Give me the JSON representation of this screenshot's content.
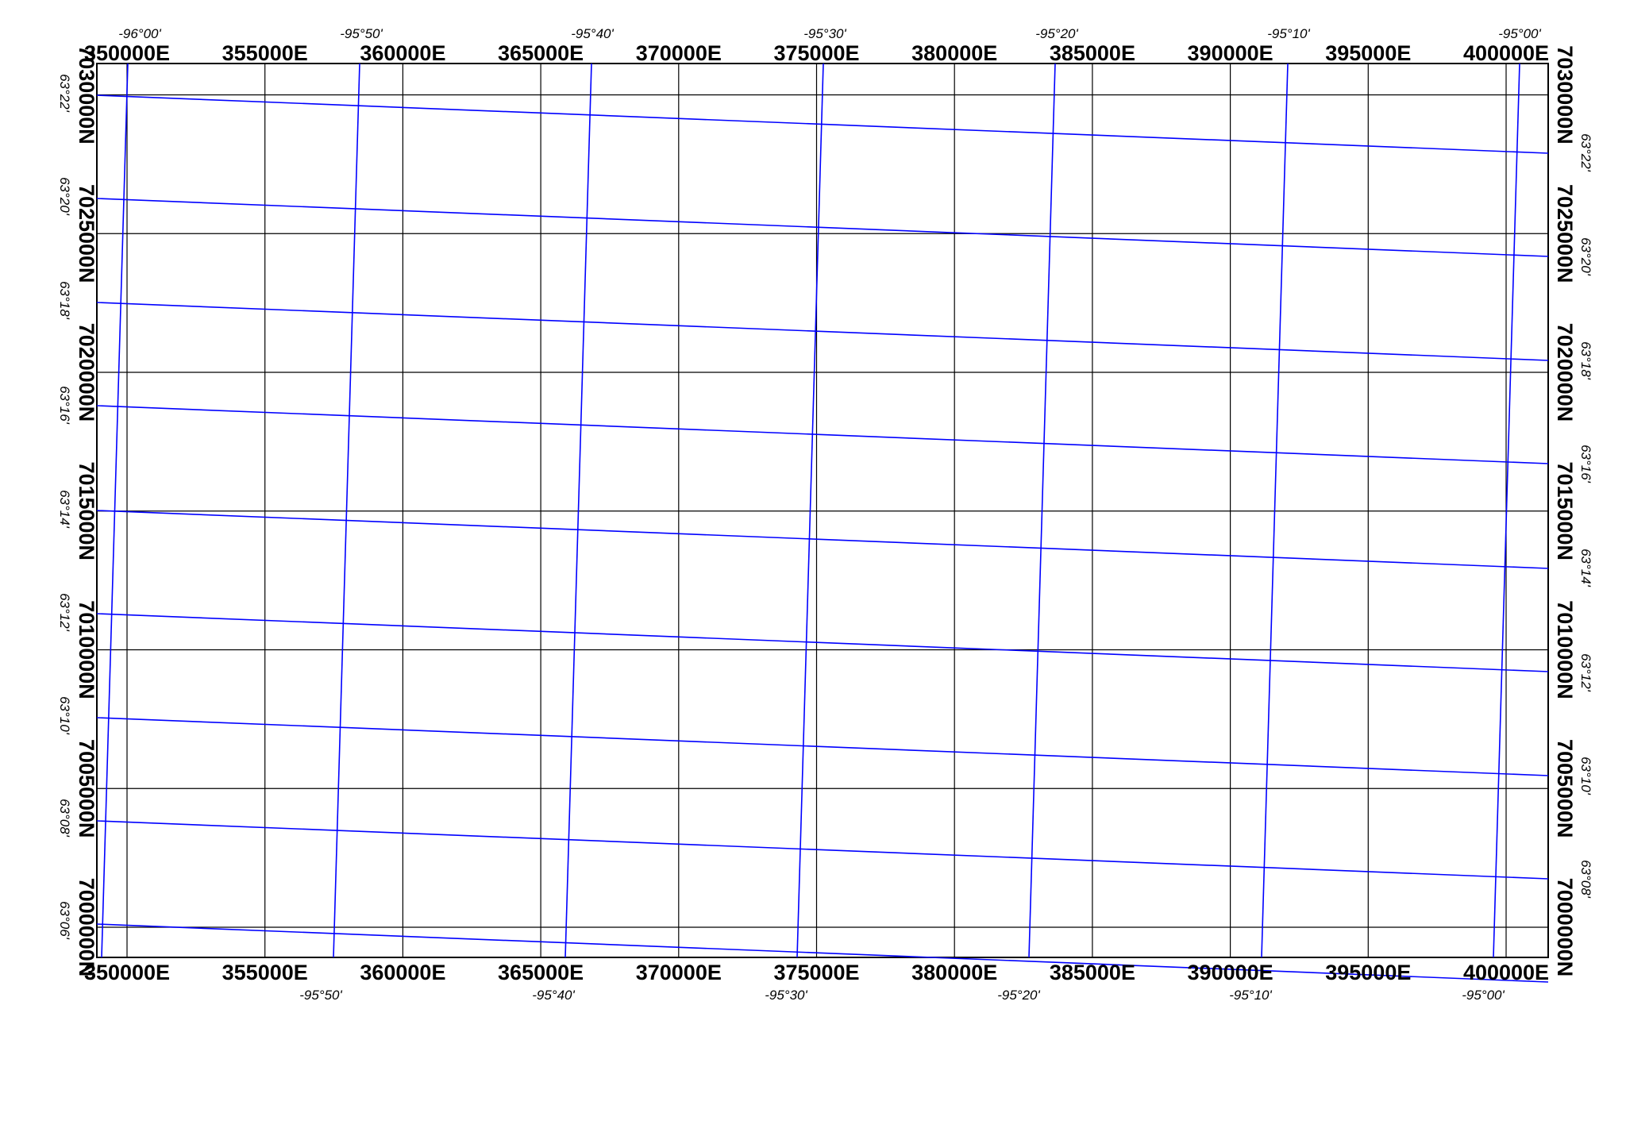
{
  "map": {
    "colors": {
      "utm_grid": "#000000",
      "geo_graticule": "#0000ff",
      "frame": "#000000",
      "background": "#ffffff"
    },
    "utm_grid": {
      "eastings": [
        350000,
        355000,
        360000,
        365000,
        370000,
        375000,
        380000,
        385000,
        390000,
        395000,
        400000
      ],
      "northings": [
        7030000,
        7025000,
        7020000,
        7015000,
        7010000,
        7005000,
        7000000
      ],
      "easting_labels": [
        "350000E",
        "355000E",
        "360000E",
        "365000E",
        "370000E",
        "375000E",
        "380000E",
        "385000E",
        "390000E",
        "395000E",
        "400000E"
      ],
      "northing_labels": [
        "7030000N",
        "7025000N",
        "7020000N",
        "7015000N",
        "7010000N",
        "7005000N",
        "7000000N"
      ]
    },
    "geo_graticule": {
      "longitudes": [
        -96.0,
        -95.8333,
        -95.6667,
        -95.5,
        -95.3333,
        -95.1667,
        -95.0
      ],
      "latitudes": [
        63.3667,
        63.3333,
        63.3,
        63.2667,
        63.2333,
        63.2,
        63.1667,
        63.1333,
        63.1
      ],
      "top_longitude_labels": [
        "-96°00'",
        "-95°50'",
        "-95°40'",
        "-95°30'",
        "-95°20'",
        "-95°10'",
        "-95°00'"
      ],
      "bottom_longitude_labels": [
        "-95°50'",
        "-95°40'",
        "-95°30'",
        "-95°20'",
        "-95°10'",
        "-95°00'"
      ],
      "left_latitude_labels": [
        "63°22'",
        "63°20'",
        "63°18'",
        "63°16'",
        "63°14'",
        "63°12'",
        "63°10'",
        "63°08'",
        "63°06'"
      ],
      "right_latitude_labels": [
        "63°22'",
        "63°20'",
        "63°18'",
        "63°16'",
        "63°14'",
        "63°12'",
        "63°10'",
        "63°08'"
      ]
    }
  }
}
